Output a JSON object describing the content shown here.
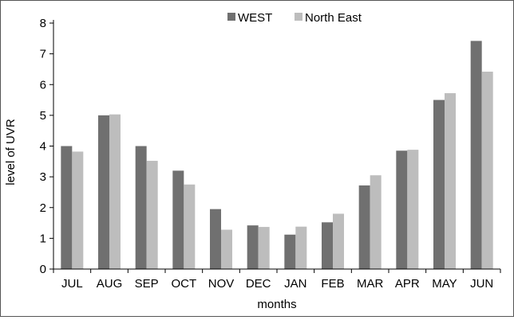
{
  "chart_data": {
    "type": "bar",
    "title": "",
    "xlabel": "months",
    "ylabel": "level of UVR",
    "categories": [
      "JUL",
      "AUG",
      "SEP",
      "OCT",
      "NOV",
      "DEC",
      "JAN",
      "FEB",
      "MAR",
      "APR",
      "MAY",
      "JUN"
    ],
    "series": [
      {
        "name": "WEST",
        "color": "#707070",
        "values": [
          4.0,
          5.0,
          4.0,
          3.2,
          1.95,
          1.42,
          1.12,
          1.52,
          2.72,
          3.85,
          5.5,
          7.42
        ]
      },
      {
        "name": "North East",
        "color": "#bdbdbd",
        "values": [
          3.82,
          5.03,
          3.52,
          2.75,
          1.28,
          1.37,
          1.38,
          1.8,
          3.05,
          3.88,
          5.72,
          6.42
        ]
      }
    ],
    "ylim": [
      0,
      8
    ],
    "yticks": [
      0,
      1,
      2,
      3,
      4,
      5,
      6,
      7,
      8
    ],
    "legend_position": "top-center",
    "grid": false
  }
}
